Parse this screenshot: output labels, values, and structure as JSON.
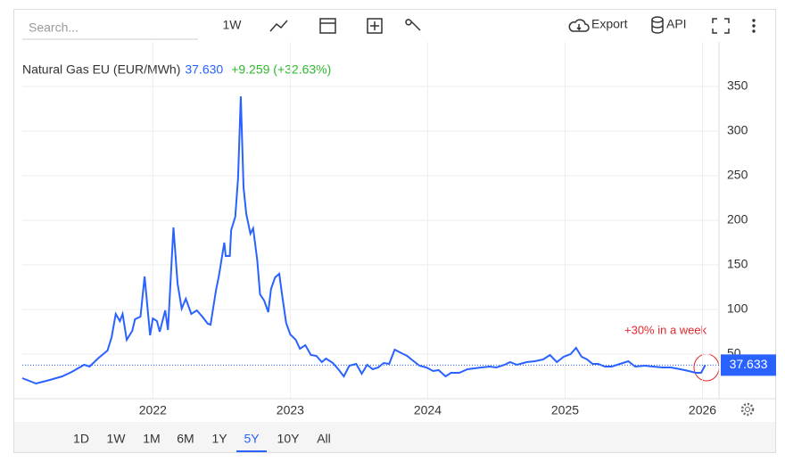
{
  "toolbar": {
    "search_placeholder": "Search...",
    "interval": "1W",
    "export": "Export",
    "api": "API"
  },
  "chart_data": {
    "type": "line",
    "title": "Natural Gas EU (EUR/MWh)",
    "last_value": "37.630",
    "change": "+9.259 (+32.63%)",
    "annotation": "+30% in a week",
    "last_label": "37.633",
    "color": "#2962ff",
    "grid": true,
    "x": [
      2021.05,
      2021.15,
      2021.25,
      2021.34,
      2021.41,
      2021.5,
      2021.54,
      2021.6,
      2021.67,
      2021.7,
      2021.73,
      2021.76,
      2021.78,
      2021.81,
      2021.85,
      2021.87,
      2021.91,
      2021.94,
      2021.98,
      2022.0,
      2022.03,
      2022.05,
      2022.09,
      2022.11,
      2022.15,
      2022.18,
      2022.21,
      2022.24,
      2022.28,
      2022.32,
      2022.36,
      2022.4,
      2022.42,
      2022.46,
      2022.48,
      2022.52,
      2022.53,
      2022.56,
      2022.57,
      2022.6,
      2022.62,
      2022.64,
      2022.66,
      2022.68,
      2022.71,
      2022.73,
      2022.76,
      2022.78,
      2022.81,
      2022.84,
      2022.86,
      2022.89,
      2022.92,
      2022.94,
      2022.97,
      2023.0,
      2023.04,
      2023.07,
      2023.11,
      2023.15,
      2023.19,
      2023.23,
      2023.26,
      2023.31,
      2023.35,
      2023.39,
      2023.43,
      2023.48,
      2023.52,
      2023.56,
      2023.6,
      2023.64,
      2023.68,
      2023.72,
      2023.76,
      2023.81,
      2023.85,
      2023.89,
      2023.94,
      2023.99,
      2024.04,
      2024.08,
      2024.13,
      2024.17,
      2024.23,
      2024.29,
      2024.34,
      2024.39,
      2024.45,
      2024.5,
      2024.56,
      2024.6,
      2024.65,
      2024.72,
      2024.78,
      2024.84,
      2024.89,
      2024.94,
      2024.99,
      2025.04,
      2025.08,
      2025.12,
      2025.16,
      2025.2,
      2025.24,
      2025.29,
      2025.34,
      2025.4,
      2025.46,
      2025.51,
      2025.58,
      2025.64,
      2025.71,
      2025.77,
      2025.84,
      2025.9,
      2025.95,
      2025.99,
      2026.02
    ],
    "values": [
      23,
      17,
      21,
      25,
      30,
      38,
      36,
      45,
      54,
      69,
      95,
      87,
      95,
      66,
      76,
      89,
      92,
      137,
      71,
      90,
      87,
      75,
      99,
      77,
      192,
      129,
      101,
      112,
      95,
      99,
      92,
      84,
      83,
      122,
      137,
      175,
      160,
      160,
      189,
      204,
      247,
      339,
      237,
      207,
      185,
      191,
      155,
      117,
      110,
      97,
      123,
      136,
      140,
      117,
      85,
      72,
      66,
      56,
      60,
      49,
      48,
      41,
      45,
      40,
      33,
      25,
      37,
      39,
      28,
      38,
      33,
      35,
      40,
      39,
      55,
      51,
      48,
      43,
      37,
      35,
      31,
      32,
      25,
      29,
      29,
      33,
      34,
      35,
      36,
      35,
      38,
      41,
      38,
      41,
      42,
      44,
      49,
      41,
      47,
      50,
      57,
      47,
      44,
      39,
      39,
      36,
      36,
      39,
      42,
      36,
      37,
      36,
      35,
      35,
      33,
      31,
      29,
      29,
      37.63
    ],
    "xlim": [
      2021.05,
      2026.12
    ],
    "xticks": [
      2022,
      2023,
      2024,
      2025,
      2026
    ],
    "ylim": [
      0,
      400
    ],
    "yticks": [
      50,
      100,
      150,
      200,
      250,
      300,
      350
    ],
    "ranges": [
      "1D",
      "1W",
      "1M",
      "6M",
      "1Y",
      "5Y",
      "10Y",
      "All"
    ],
    "active_range": "5Y"
  }
}
